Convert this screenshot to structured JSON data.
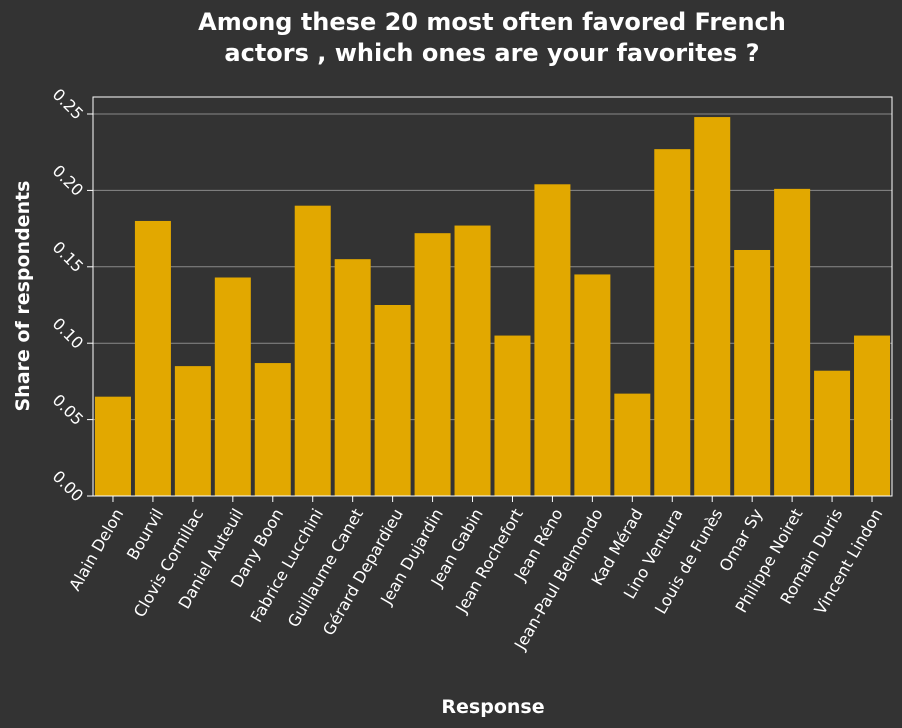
{
  "chart_data": {
    "type": "bar",
    "title": "Among these 20 most often favored French actors , which ones are your favorites ?",
    "title_lines": [
      "Among these 20 most often favored French",
      "actors , which ones are your favorites ?"
    ],
    "xlabel": "Response",
    "ylabel": "Share of respondents",
    "ylim": [
      0,
      0.25
    ],
    "yticks": [
      "0.00",
      "0.05",
      "0.10",
      "0.15",
      "0.20",
      "0.25"
    ],
    "grid": true,
    "bar_color": "#e2a800",
    "background_color": "#333333",
    "categories": [
      "Alain Delon",
      "Bourvil",
      "Clovis Cornillac",
      "Daniel Auteuil",
      "Dany Boon",
      "Fabrice Lucchini",
      "Guillaume Canet",
      "Gérard Depardieu",
      "Jean Dujardin",
      "Jean Gabin",
      "Jean Rochefort",
      "Jean Réno",
      "Jean-Paul Belmondo",
      "Kad Mérad",
      "Lino Ventura",
      "Louis de Funès",
      "Omar Sy",
      "Philippe Noiret",
      "Romain Duris",
      "Vincent Lindon"
    ],
    "values": [
      0.065,
      0.18,
      0.085,
      0.143,
      0.087,
      0.19,
      0.155,
      0.125,
      0.172,
      0.177,
      0.105,
      0.204,
      0.145,
      0.067,
      0.227,
      0.248,
      0.161,
      0.201,
      0.082,
      0.105
    ]
  }
}
